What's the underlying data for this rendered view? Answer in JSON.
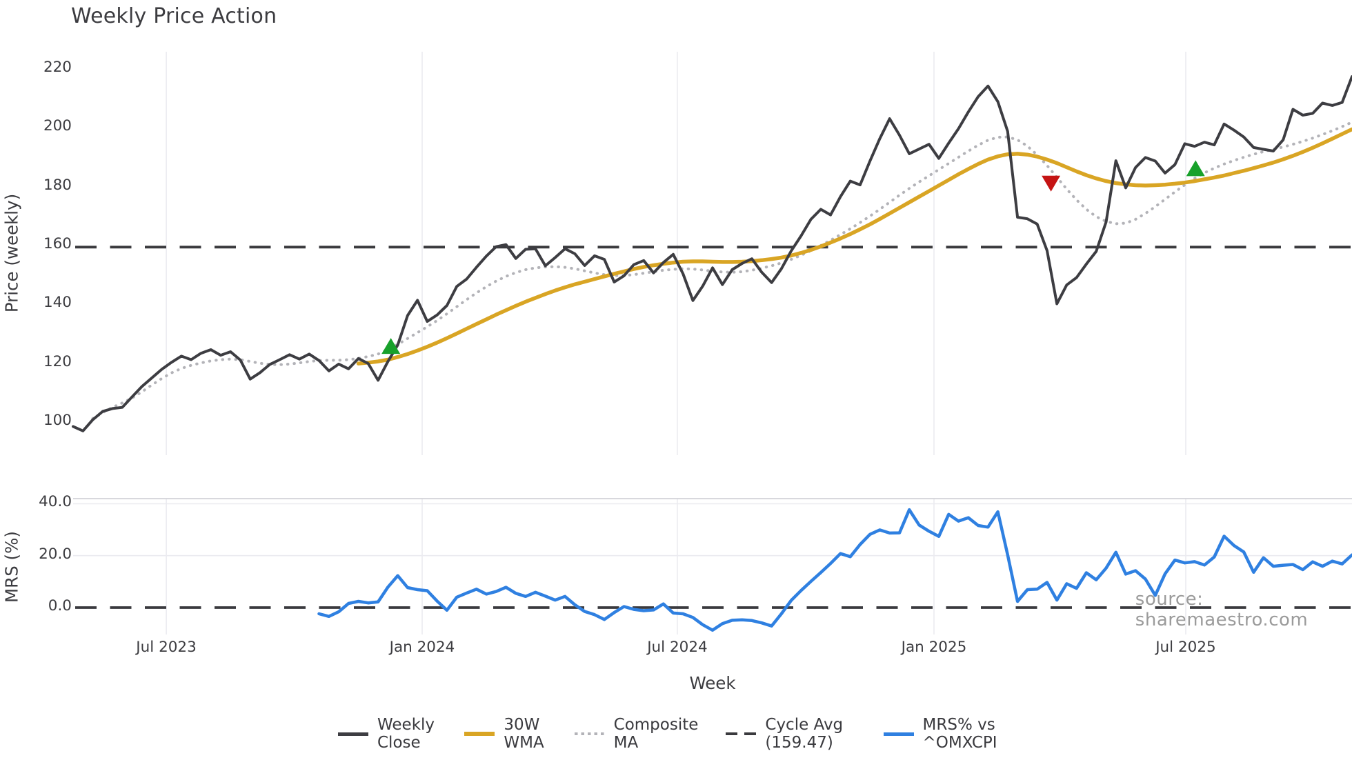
{
  "title": "Weekly Price Action",
  "watermark": "source: sharemaestro.com",
  "colors": {
    "weekly_close": "#3d3d42",
    "wma_30w": "#d9a524",
    "composite_ma": "#b3b3b8",
    "cycle_avg": "#3a3a3e",
    "mrs_line": "#2f80e1",
    "green_marker": "#18a12b",
    "red_marker": "#c51414",
    "gridline": "#ebebf0",
    "panel_spine": "#cbcbd2",
    "tick_text": "#3c3c40",
    "watermark_text": "#9b9b9b"
  },
  "legend": {
    "items": [
      {
        "label": "Weekly Close",
        "style": "solid"
      },
      {
        "label": "30W WMA",
        "style": "solid"
      },
      {
        "label": "Composite MA",
        "style": "dotted"
      },
      {
        "label": "Cycle Avg (159.47)",
        "style": "dashed"
      },
      {
        "label": "MRS% vs ^OMXCPI",
        "style": "solid"
      }
    ]
  },
  "chart_data": {
    "type": "line",
    "title": "Weekly Price Action",
    "xlabel": "Week",
    "x_axis": {
      "n_weeks": 131,
      "tick_labels": [
        "Jul 2023",
        "Jan 2024",
        "Jul 2024",
        "Jan 2025",
        "Jul 2025"
      ],
      "tick_week_index": [
        9.47,
        35.48,
        61.42,
        87.51,
        113.1
      ]
    },
    "price_panel": {
      "ylabel": "Price (weekly)",
      "yticks": [
        220,
        200,
        180,
        160,
        140,
        120,
        100
      ],
      "ylim": [
        88.8,
        225.9
      ],
      "grid": "vertical-only",
      "cycle_avg": {
        "label": "Cycle Avg (159.47)",
        "value": 159.47
      },
      "markers": {
        "green_up": [
          {
            "week": 32.3,
            "value": 125.4
          },
          {
            "week": 114.1,
            "value": 185.8
          }
        ],
        "red_down": [
          {
            "week": 99.4,
            "value": 181.5
          }
        ]
      },
      "series": [
        {
          "name": "Weekly Close",
          "style": "solid",
          "colorKey": "weekly_close",
          "width": 4,
          "values": [
            98.5,
            97.0,
            100.8,
            103.6,
            104.6,
            105.0,
            108.6,
            112.1,
            115.0,
            117.9,
            120.3,
            122.4,
            121.2,
            123.4,
            124.6,
            122.7,
            123.9,
            121.1,
            114.6,
            116.8,
            119.6,
            121.2,
            122.9,
            121.4,
            123.1,
            120.9,
            117.4,
            119.7,
            118.1,
            121.6,
            119.9,
            114.2,
            120.6,
            126.2,
            136.2,
            141.4,
            134.2,
            136.4,
            139.6,
            146.1,
            148.6,
            152.6,
            156.4,
            159.6,
            160.3,
            155.6,
            158.7,
            158.9,
            153.1,
            155.9,
            158.9,
            157.2,
            153.2,
            156.5,
            155.3,
            147.6,
            149.7,
            153.5,
            154.9,
            150.7,
            154.2,
            157.0,
            150.4,
            141.3,
            146.2,
            152.4,
            146.7,
            151.8,
            153.9,
            155.5,
            150.9,
            147.4,
            152.1,
            158.2,
            163.3,
            168.9,
            172.3,
            170.4,
            176.6,
            181.9,
            180.6,
            188.7,
            196.3,
            203.1,
            197.5,
            191.2,
            192.8,
            194.4,
            189.6,
            194.8,
            199.7,
            205.4,
            210.6,
            214.2,
            208.9,
            198.8,
            169.6,
            169.1,
            167.3,
            158.3,
            140.2,
            146.6,
            149.1,
            153.7,
            158.0,
            168.0,
            188.8,
            179.6,
            186.5,
            189.9,
            188.7,
            184.6,
            187.5,
            194.6,
            193.7,
            195.1,
            194.2,
            201.3,
            199.2,
            196.9,
            193.3,
            192.7,
            192.1,
            195.9,
            206.3,
            204.3,
            204.9,
            208.4,
            207.6,
            208.6,
            217.4
          ]
        },
        {
          "name": "30W WMA",
          "style": "solid",
          "colorKey": "wma_30w",
          "width": 5.5,
          "values": [
            null,
            null,
            null,
            null,
            null,
            null,
            null,
            null,
            null,
            null,
            null,
            null,
            null,
            null,
            null,
            null,
            null,
            null,
            null,
            null,
            null,
            null,
            null,
            null,
            null,
            null,
            null,
            null,
            null,
            119.9,
            120.2,
            120.6,
            121.2,
            122.1,
            123.1,
            124.3,
            125.6,
            127.0,
            128.5,
            130.1,
            131.7,
            133.3,
            134.9,
            136.5,
            138.0,
            139.5,
            140.9,
            142.2,
            143.5,
            144.7,
            145.8,
            146.8,
            147.7,
            148.6,
            149.5,
            150.4,
            151.2,
            152.0,
            152.7,
            153.3,
            153.8,
            154.2,
            154.5,
            154.6,
            154.6,
            154.5,
            154.4,
            154.4,
            154.5,
            154.7,
            155.0,
            155.4,
            155.9,
            156.6,
            157.5,
            158.5,
            159.7,
            161.0,
            162.4,
            163.9,
            165.5,
            167.2,
            169.0,
            170.9,
            172.8,
            174.7,
            176.6,
            178.5,
            180.4,
            182.3,
            184.2,
            186.0,
            187.7,
            189.2,
            190.3,
            191.0,
            191.2,
            190.9,
            190.2,
            189.2,
            188.0,
            186.6,
            185.2,
            183.9,
            182.8,
            181.9,
            181.2,
            180.8,
            180.5,
            180.4,
            180.5,
            180.7,
            181.0,
            181.4,
            181.9,
            182.5,
            183.1,
            183.8,
            184.6,
            185.4,
            186.3,
            187.2,
            188.2,
            189.3,
            190.5,
            191.8,
            193.2,
            194.7,
            196.3,
            197.9,
            199.5
          ]
        },
        {
          "name": "Composite MA",
          "style": "dotted",
          "colorKey": "composite_ma",
          "width": 4,
          "values": [
            null,
            null,
            101.2,
            103.2,
            105.0,
            106.5,
            108.2,
            110.3,
            112.6,
            114.8,
            116.7,
            118.2,
            119.3,
            120.1,
            120.8,
            121.2,
            121.4,
            121.2,
            120.6,
            120.0,
            119.6,
            119.5,
            119.7,
            120.1,
            120.6,
            120.9,
            121.0,
            121.0,
            121.2,
            121.6,
            122.3,
            123.1,
            124.6,
            126.4,
            128.4,
            130.4,
            132.4,
            134.5,
            136.8,
            139.2,
            141.6,
            143.9,
            146.0,
            147.9,
            149.5,
            150.8,
            151.8,
            152.4,
            152.7,
            152.8,
            152.6,
            152.1,
            151.4,
            150.7,
            150.1,
            149.8,
            149.8,
            150.1,
            150.6,
            151.1,
            151.6,
            151.9,
            152.1,
            152.0,
            151.7,
            151.3,
            151.0,
            150.9,
            151.1,
            151.6,
            152.3,
            153.1,
            154.1,
            155.3,
            156.7,
            158.3,
            160.0,
            161.8,
            163.7,
            165.7,
            167.8,
            170.0,
            172.3,
            174.7,
            177.1,
            179.4,
            181.6,
            183.7,
            185.8,
            187.9,
            190.0,
            192.1,
            194.1,
            195.8,
            196.8,
            196.9,
            195.9,
            193.8,
            190.8,
            187.2,
            183.2,
            179.2,
            175.5,
            172.3,
            169.8,
            168.2,
            167.4,
            167.6,
            168.9,
            170.9,
            173.2,
            175.7,
            178.2,
            180.6,
            182.8,
            184.7,
            186.3,
            187.7,
            188.9,
            190.0,
            191.0,
            191.9,
            192.7,
            193.5,
            194.4,
            195.4,
            196.5,
            197.7,
            199.0,
            200.4,
            201.9
          ]
        }
      ]
    },
    "mrs_panel": {
      "ylabel": "MRS (%)",
      "ytick_labels": [
        "40.0",
        "20.0",
        "0.0"
      ],
      "ytick_values": [
        40,
        20,
        0
      ],
      "gridlines": [
        40,
        20
      ],
      "zero_line": 0,
      "series": [
        {
          "name": "MRS% vs ^OMXCPI",
          "style": "solid",
          "colorKey": "mrs_line",
          "width": 4.5,
          "values": [
            null,
            null,
            null,
            null,
            null,
            null,
            null,
            null,
            null,
            null,
            null,
            null,
            null,
            null,
            null,
            null,
            null,
            null,
            null,
            null,
            null,
            null,
            null,
            null,
            null,
            -2.4,
            -3.4,
            -1.6,
            1.6,
            2.4,
            1.8,
            2.2,
            7.9,
            12.3,
            7.7,
            6.9,
            6.5,
            2.5,
            -1.0,
            4.0,
            5.6,
            7.1,
            5.2,
            6.2,
            7.8,
            5.5,
            4.3,
            5.9,
            4.4,
            2.9,
            4.3,
            1.1,
            -1.5,
            -2.7,
            -4.6,
            -1.9,
            0.4,
            -0.7,
            -1.2,
            -0.9,
            1.4,
            -2.1,
            -2.4,
            -3.8,
            -6.6,
            -8.7,
            -6.2,
            -4.9,
            -4.7,
            -5.0,
            -5.9,
            -7.1,
            -2.4,
            2.8,
            6.6,
            10.1,
            13.5,
            17.0,
            20.8,
            19.6,
            24.3,
            28.2,
            29.9,
            28.7,
            28.8,
            37.7,
            31.8,
            29.4,
            27.4,
            35.9,
            33.3,
            34.6,
            31.6,
            31.0,
            36.9,
            20.3,
            2.4,
            6.9,
            7.1,
            9.7,
            2.9,
            9.2,
            7.4,
            13.4,
            10.7,
            15.2,
            21.3,
            12.9,
            14.2,
            11.0,
            4.7,
            13.0,
            18.3,
            17.2,
            17.7,
            16.4,
            19.5,
            27.5,
            23.9,
            21.4,
            13.6,
            19.2,
            15.9,
            16.3,
            16.6,
            14.6,
            17.6,
            15.9,
            17.9,
            16.8,
            20.3
          ]
        }
      ]
    }
  }
}
